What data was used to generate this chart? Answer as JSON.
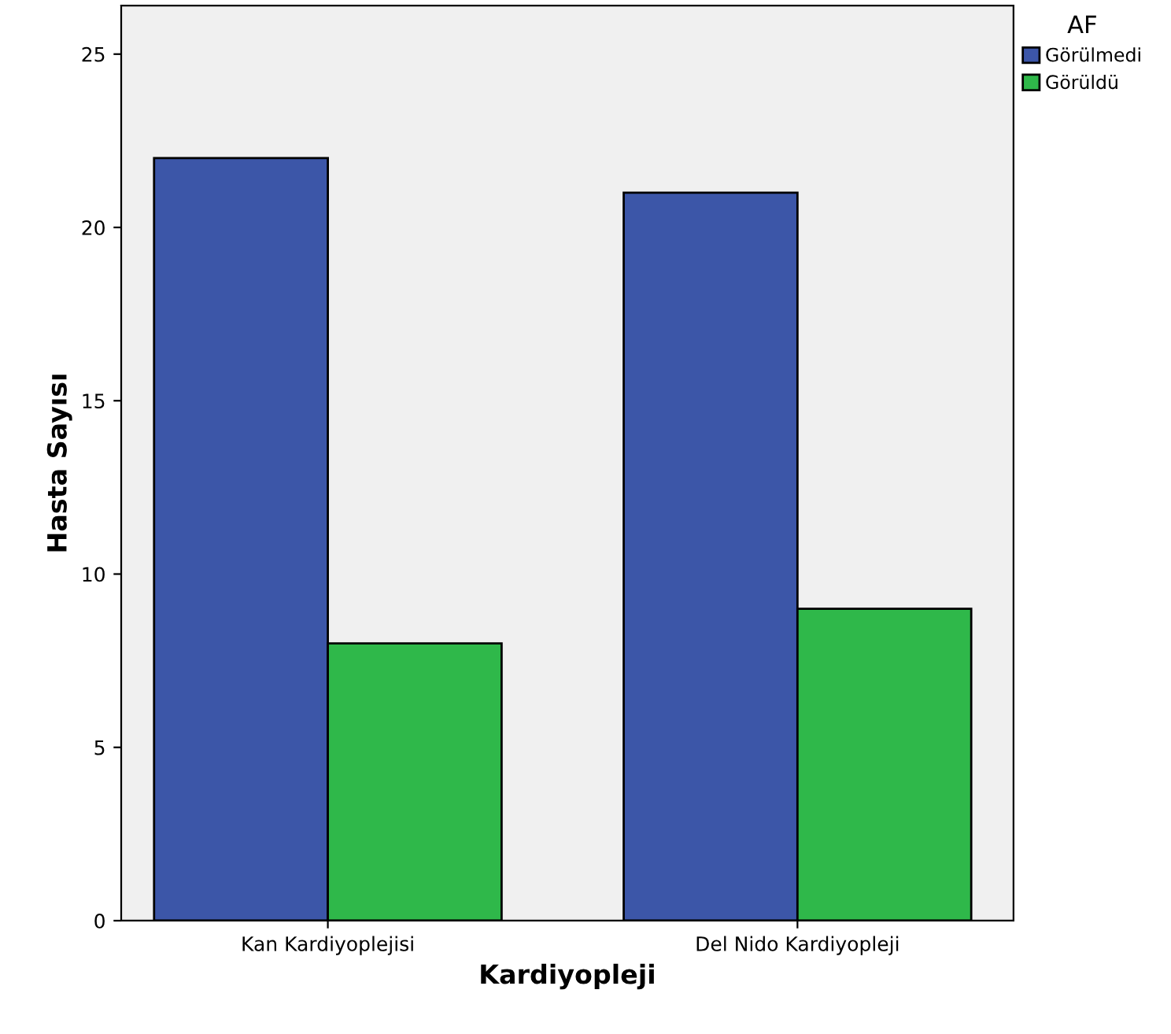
{
  "chart_data": {
    "type": "bar",
    "xlabel": "Kardiyopleji",
    "ylabel": "Hasta Sayısı",
    "legend_title": "AF",
    "categories": [
      "Kan Kardiyoplejisi",
      "Del Nido Kardiyopleji"
    ],
    "series": [
      {
        "name": "Görülmedi",
        "color": "#3c56a8",
        "values": [
          22,
          21
        ]
      },
      {
        "name": "Görüldü",
        "color": "#2fb84a",
        "values": [
          8,
          9
        ]
      }
    ],
    "ylim": [
      0,
      26.4
    ],
    "yticks": [
      0,
      5,
      10,
      15,
      20,
      25
    ],
    "grid": false,
    "legend": "top right"
  }
}
